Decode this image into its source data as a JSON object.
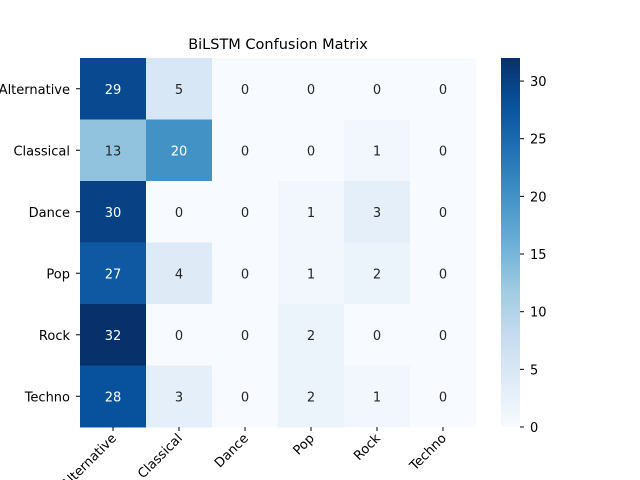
{
  "chart_data": {
    "type": "heatmap",
    "title": "BiLSTM Confusion Matrix",
    "row_labels": [
      "Alternative",
      "Classical",
      "Dance",
      "Pop",
      "Rock",
      "Techno"
    ],
    "col_labels": [
      "Alternative",
      "Classical",
      "Dance",
      "Pop",
      "Rock",
      "Techno"
    ],
    "values": [
      [
        29,
        5,
        0,
        0,
        0,
        0
      ],
      [
        13,
        20,
        0,
        0,
        1,
        0
      ],
      [
        30,
        0,
        0,
        1,
        3,
        0
      ],
      [
        27,
        4,
        0,
        1,
        2,
        0
      ],
      [
        32,
        0,
        0,
        2,
        0,
        0
      ],
      [
        28,
        3,
        0,
        2,
        1,
        0
      ]
    ],
    "colormap": "Blues",
    "vmin": 0,
    "vmax": 32,
    "colorbar_ticks": [
      "0",
      "5",
      "10",
      "15",
      "20",
      "25",
      "30"
    ],
    "xlabel": "",
    "ylabel": ""
  }
}
